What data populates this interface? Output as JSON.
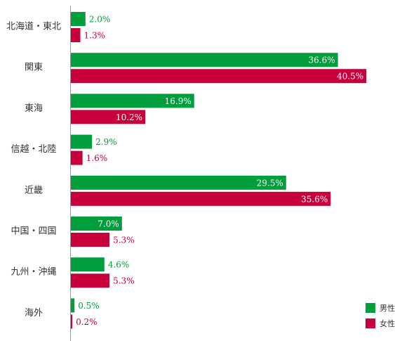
{
  "chart_data": {
    "type": "bar",
    "orientation": "horizontal",
    "categories": [
      "北海道・東北",
      "関東",
      "東海",
      "信越・北陸",
      "近畿",
      "中国・四国",
      "九州・沖縄",
      "海外"
    ],
    "series": [
      {
        "name": "男性",
        "color": "#009e3c",
        "values": [
          2.0,
          36.6,
          16.9,
          2.9,
          29.5,
          7.0,
          4.6,
          0.5
        ]
      },
      {
        "name": "女性",
        "color": "#c8003c",
        "values": [
          1.3,
          40.5,
          10.2,
          1.6,
          35.6,
          5.3,
          5.3,
          0.2
        ]
      }
    ],
    "value_suffix": "%",
    "xlim": [
      0,
      50
    ],
    "grid": false,
    "legend": "bottom-right"
  }
}
